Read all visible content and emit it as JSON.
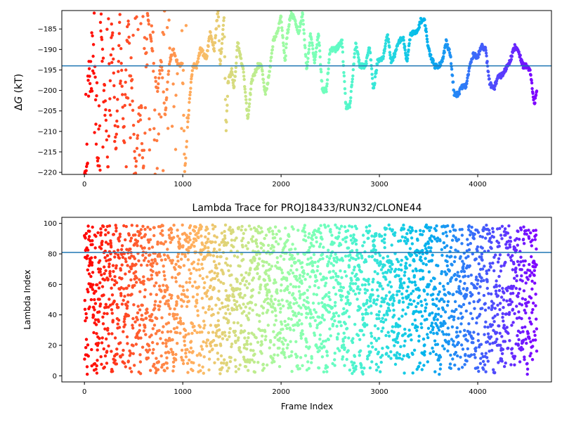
{
  "chart_data": [
    {
      "id": "top",
      "type": "scatter",
      "title": "",
      "xlabel": "",
      "ylabel": "ΔG (kT)",
      "ylabel_delta": "Δ",
      "ylabel_var": "G",
      "ylabel_unit": " (kT)",
      "xlim": [
        -230,
        4750
      ],
      "ylim": [
        -220.5,
        -180.5
      ],
      "xticks": [
        0,
        1000,
        2000,
        3000,
        4000
      ],
      "yticks": [
        -185,
        -190,
        -195,
        -200,
        -205,
        -210,
        -215,
        -220
      ],
      "hline": -194,
      "hline_color": "#1f77b4",
      "colormap": "rainbow",
      "x_range": [
        0,
        4600
      ],
      "point_count": 1300,
      "segments": [
        [
          0,
          -220
        ],
        [
          20,
          -220
        ],
        [
          40,
          -190
        ],
        [
          60,
          -200
        ],
        [
          80,
          -200
        ],
        [
          100,
          -181
        ],
        [
          120,
          -213
        ],
        [
          140,
          -219
        ],
        [
          160,
          -183
        ],
        [
          200,
          -195
        ],
        [
          240,
          -220
        ],
        [
          280,
          -180
        ],
        [
          320,
          -216
        ],
        [
          360,
          -181
        ],
        [
          400,
          -212
        ],
        [
          440,
          -181
        ],
        [
          480,
          -198
        ],
        [
          520,
          -220
        ],
        [
          560,
          -203
        ],
        [
          600,
          -220
        ],
        [
          640,
          -181
        ],
        [
          700,
          -192
        ],
        [
          740,
          -201
        ],
        [
          780,
          -192
        ],
        [
          820,
          -206
        ],
        [
          860,
          -194
        ],
        [
          900,
          -190
        ],
        [
          960,
          -194
        ],
        [
          1000,
          -193
        ],
        [
          1020,
          -220
        ],
        [
          1060,
          -205
        ],
        [
          1100,
          -194
        ],
        [
          1140,
          -194
        ],
        [
          1180,
          -190
        ],
        [
          1240,
          -192
        ],
        [
          1280,
          -186
        ],
        [
          1320,
          -190
        ],
        [
          1360,
          -180
        ],
        [
          1380,
          -194
        ],
        [
          1420,
          -182
        ],
        [
          1440,
          -211
        ],
        [
          1460,
          -198
        ],
        [
          1500,
          -195
        ],
        [
          1520,
          -200
        ],
        [
          1560,
          -188
        ],
        [
          1620,
          -196
        ],
        [
          1660,
          -207
        ],
        [
          1700,
          -198
        ],
        [
          1760,
          -194
        ],
        [
          1800,
          -194
        ],
        [
          1840,
          -201
        ],
        [
          1880,
          -196
        ],
        [
          1920,
          -188
        ],
        [
          1960,
          -186
        ],
        [
          2000,
          -182
        ],
        [
          2040,
          -193
        ],
        [
          2060,
          -187
        ],
        [
          2100,
          -181
        ],
        [
          2140,
          -183
        ],
        [
          2180,
          -186
        ],
        [
          2220,
          -181
        ],
        [
          2260,
          -195
        ],
        [
          2300,
          -186
        ],
        [
          2340,
          -193
        ],
        [
          2380,
          -186
        ],
        [
          2420,
          -200
        ],
        [
          2460,
          -200
        ],
        [
          2500,
          -190
        ],
        [
          2560,
          -190
        ],
        [
          2620,
          -188
        ],
        [
          2660,
          -204
        ],
        [
          2700,
          -204
        ],
        [
          2760,
          -188
        ],
        [
          2800,
          -194
        ],
        [
          2860,
          -194
        ],
        [
          2900,
          -189
        ],
        [
          2940,
          -200
        ],
        [
          2980,
          -193
        ],
        [
          3040,
          -192
        ],
        [
          3080,
          -186
        ],
        [
          3120,
          -193
        ],
        [
          3160,
          -191
        ],
        [
          3200,
          -188
        ],
        [
          3240,
          -187
        ],
        [
          3280,
          -193
        ],
        [
          3320,
          -186
        ],
        [
          3380,
          -186
        ],
        [
          3420,
          -183
        ],
        [
          3460,
          -183
        ],
        [
          3500,
          -190
        ],
        [
          3560,
          -194
        ],
        [
          3600,
          -194
        ],
        [
          3640,
          -193
        ],
        [
          3680,
          -188
        ],
        [
          3720,
          -191
        ],
        [
          3760,
          -201
        ],
        [
          3800,
          -201
        ],
        [
          3840,
          -199
        ],
        [
          3880,
          -199
        ],
        [
          3920,
          -194
        ],
        [
          3960,
          -191
        ],
        [
          4000,
          -192
        ],
        [
          4040,
          -189
        ],
        [
          4080,
          -190
        ],
        [
          4120,
          -198
        ],
        [
          4160,
          -200
        ],
        [
          4200,
          -197
        ],
        [
          4260,
          -196
        ],
        [
          4300,
          -194
        ],
        [
          4340,
          -192
        ],
        [
          4380,
          -189
        ],
        [
          4420,
          -191
        ],
        [
          4460,
          -194
        ],
        [
          4500,
          -194
        ],
        [
          4540,
          -196
        ],
        [
          4560,
          -201
        ],
        [
          4580,
          -203
        ],
        [
          4600,
          -200
        ]
      ]
    },
    {
      "id": "bottom",
      "type": "scatter",
      "title": "Lambda Trace for PROJ18433/RUN32/CLONE44",
      "xlabel": "Frame Index",
      "ylabel": "Lambda Index",
      "xlim": [
        -230,
        4750
      ],
      "ylim": [
        -4,
        104
      ],
      "xticks": [
        0,
        1000,
        2000,
        3000,
        4000
      ],
      "yticks": [
        0,
        20,
        40,
        60,
        80,
        100
      ],
      "hline": 81,
      "hline_color": "#1f77b4",
      "colormap": "rainbow",
      "x_range": [
        0,
        4600
      ],
      "point_count": 3200,
      "range": [
        1,
        99
      ]
    }
  ]
}
